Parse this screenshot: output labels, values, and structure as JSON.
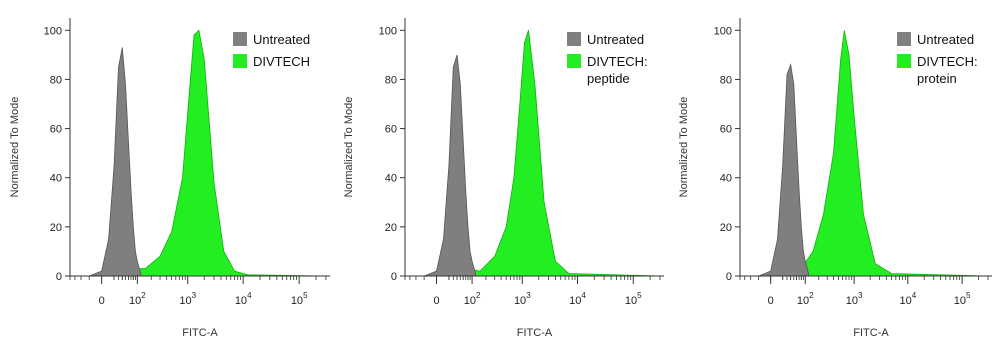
{
  "colors": {
    "untreated": "#7f7f7f",
    "treated": "#22ee22",
    "treated_edge": "#10b010",
    "axis": "#333333"
  },
  "chart_data": [
    {
      "type": "area",
      "ylabel": "Normalized To Mode",
      "xlabel": "FITC-A",
      "ylim": [
        0,
        105
      ],
      "yticks": [
        "0",
        "20",
        "40",
        "60",
        "80",
        "100"
      ],
      "yticks_values": [
        0,
        20,
        40,
        60,
        80,
        100
      ],
      "xticks": [
        {
          "label": "0",
          "value": 0
        },
        {
          "label": "10",
          "exp": "2",
          "value": 100
        },
        {
          "label": "10",
          "exp": "3",
          "value": 1000
        },
        {
          "label": "10",
          "exp": "4",
          "value": 10000
        },
        {
          "label": "10",
          "exp": "5",
          "value": 100000
        }
      ],
      "x_scale": "biexponential",
      "legend_position": "top-right",
      "series": [
        {
          "name": "Untreated",
          "color_key": "untreated",
          "x": [
            -20,
            0,
            10,
            20,
            30,
            40,
            50,
            60,
            70,
            80,
            90,
            100,
            120
          ],
          "y": [
            0,
            2,
            15,
            45,
            85,
            93,
            78,
            55,
            35,
            20,
            10,
            6,
            1
          ]
        },
        {
          "name": "DIVTECH",
          "color_key": "treated",
          "x": [
            40,
            80,
            150,
            300,
            500,
            800,
            1100,
            1300,
            1600,
            2000,
            3000,
            4500,
            7000,
            12000,
            300000
          ],
          "y": [
            0,
            3,
            3,
            8,
            18,
            40,
            78,
            98,
            100,
            88,
            38,
            10,
            2,
            0.5,
            0
          ]
        }
      ]
    },
    {
      "type": "area",
      "ylabel": "Normalized To Mode",
      "xlabel": "FITC-A",
      "ylim": [
        0,
        105
      ],
      "yticks": [
        "0",
        "20",
        "40",
        "60",
        "80",
        "100"
      ],
      "yticks_values": [
        0,
        20,
        40,
        60,
        80,
        100
      ],
      "xticks": [
        {
          "label": "0",
          "value": 0
        },
        {
          "label": "10",
          "exp": "2",
          "value": 100
        },
        {
          "label": "10",
          "exp": "3",
          "value": 1000
        },
        {
          "label": "10",
          "exp": "4",
          "value": 10000
        },
        {
          "label": "10",
          "exp": "5",
          "value": 100000
        }
      ],
      "x_scale": "biexponential",
      "legend_position": "top-right",
      "series": [
        {
          "name": "Untreated",
          "color_key": "untreated",
          "x": [
            -20,
            0,
            10,
            20,
            30,
            40,
            50,
            60,
            70,
            80,
            90,
            100,
            120
          ],
          "y": [
            0,
            2,
            15,
            45,
            85,
            90,
            78,
            55,
            35,
            20,
            10,
            6,
            1
          ]
        },
        {
          "name": "DIVTECH:",
          "name2": "peptide",
          "color_key": "treated",
          "x": [
            20,
            40,
            80,
            150,
            300,
            500,
            700,
            900,
            1100,
            1300,
            1700,
            2500,
            4000,
            7000,
            300000
          ],
          "y": [
            0,
            4,
            3,
            2,
            8,
            20,
            40,
            70,
            95,
            100,
            78,
            30,
            6,
            1,
            0
          ]
        }
      ]
    },
    {
      "type": "area",
      "ylabel": "Normalized To Mode",
      "xlabel": "FITC-A",
      "ylim": [
        0,
        105
      ],
      "yticks": [
        "0",
        "20",
        "40",
        "60",
        "80",
        "100"
      ],
      "yticks_values": [
        0,
        20,
        40,
        60,
        80,
        100
      ],
      "xticks": [
        {
          "label": "0",
          "value": 0
        },
        {
          "label": "10",
          "exp": "2",
          "value": 100
        },
        {
          "label": "10",
          "exp": "3",
          "value": 1000
        },
        {
          "label": "10",
          "exp": "4",
          "value": 10000
        },
        {
          "label": "10",
          "exp": "5",
          "value": 100000
        }
      ],
      "x_scale": "biexponential",
      "legend_position": "top-right",
      "series": [
        {
          "name": "Untreated",
          "color_key": "untreated",
          "x": [
            -20,
            0,
            10,
            20,
            30,
            40,
            50,
            60,
            70,
            80,
            90,
            100,
            120
          ],
          "y": [
            0,
            2,
            15,
            45,
            82,
            86,
            78,
            55,
            35,
            20,
            10,
            6,
            1
          ]
        },
        {
          "name": "DIVTECH:",
          "name2": "protein",
          "color_key": "treated",
          "x": [
            20,
            40,
            80,
            150,
            250,
            400,
            550,
            650,
            800,
            1000,
            1500,
            2500,
            5000,
            300000
          ],
          "y": [
            0,
            5,
            3,
            10,
            25,
            50,
            88,
            100,
            90,
            65,
            25,
            5,
            1,
            0
          ]
        }
      ]
    }
  ]
}
